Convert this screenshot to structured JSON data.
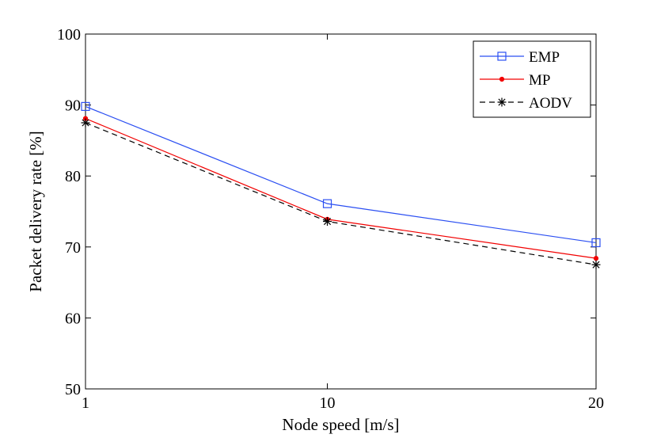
{
  "chart_data": {
    "type": "line",
    "title": "",
    "xlabel": "Node speed [m/s]",
    "ylabel": "Packet delivery rate [%]",
    "x": [
      1,
      10,
      20
    ],
    "x_tick_labels": [
      "1",
      "10",
      "20"
    ],
    "ylim": [
      50,
      100
    ],
    "y_ticks": [
      50,
      60,
      70,
      80,
      90,
      100
    ],
    "y_tick_labels": [
      "50",
      "60",
      "70",
      "80",
      "90",
      "100"
    ],
    "grid": false,
    "legend_position": "top-right",
    "series": [
      {
        "name": "EMP",
        "values": [
          89.8,
          76.1,
          70.6
        ],
        "color": "#2b4ff2",
        "line_style": "solid",
        "marker": "square"
      },
      {
        "name": "MP",
        "values": [
          88.1,
          73.9,
          68.4
        ],
        "color": "#f20000",
        "line_style": "solid",
        "marker": "dot"
      },
      {
        "name": "AODV",
        "values": [
          87.5,
          73.6,
          67.5
        ],
        "color": "#000000",
        "line_style": "dashed",
        "marker": "asterisk"
      }
    ]
  }
}
